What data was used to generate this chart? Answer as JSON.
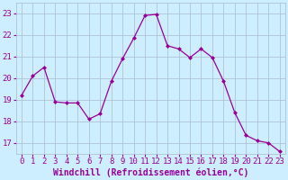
{
  "x": [
    0,
    1,
    2,
    3,
    4,
    5,
    6,
    7,
    8,
    9,
    10,
    11,
    12,
    13,
    14,
    15,
    16,
    17,
    18,
    19,
    20,
    21,
    22,
    23
  ],
  "y": [
    19.2,
    20.1,
    20.5,
    18.9,
    18.85,
    18.85,
    18.1,
    18.35,
    19.85,
    20.9,
    21.85,
    22.9,
    22.95,
    21.5,
    21.35,
    20.95,
    21.35,
    20.95,
    19.85,
    18.4,
    17.35,
    17.1,
    17.0,
    16.6
  ],
  "line_color": "#990099",
  "marker": "D",
  "marker_size": 2,
  "bg_color": "#cceeff",
  "grid_color": "#aabbcc",
  "xlabel": "Windchill (Refroidissement éolien,°C)",
  "xlabel_fontsize": 7,
  "ytick_labels": [
    "17",
    "18",
    "19",
    "20",
    "21",
    "22",
    "23"
  ],
  "ylim": [
    16.5,
    23.5
  ],
  "xlim": [
    -0.5,
    23.5
  ],
  "xtick_labels": [
    "0",
    "1",
    "2",
    "3",
    "4",
    "5",
    "6",
    "7",
    "8",
    "9",
    "10",
    "11",
    "12",
    "13",
    "14",
    "15",
    "16",
    "17",
    "18",
    "19",
    "20",
    "21",
    "22",
    "23"
  ],
  "tick_fontsize": 6.5
}
